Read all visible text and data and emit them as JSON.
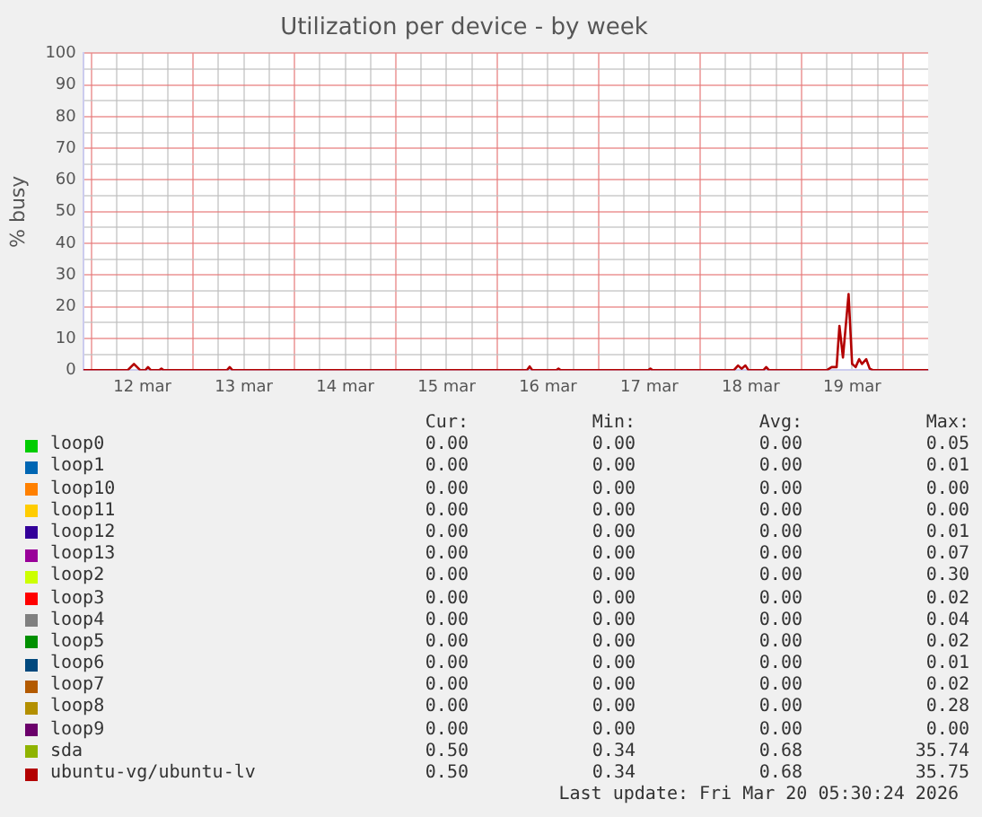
{
  "chart_data": {
    "type": "line",
    "title": "Utilization per device - by week",
    "ylabel": "% busy",
    "x": [
      "--03-11T22:00",
      "--03-12T08:30",
      "--03-12T10:00",
      "--03-12T11:30",
      "--03-12T12:40",
      "--03-12T13:20",
      "--03-12T14:00",
      "--03-12T16:00",
      "--03-12T16:30",
      "--03-12T17:00",
      "--03-13T08:00",
      "--03-13T08:40",
      "--03-13T09:20",
      "--03-16T07:00",
      "--03-16T07:40",
      "--03-16T08:20",
      "--03-16T14:00",
      "--03-16T14:30",
      "--03-16T15:00",
      "--03-17T11:45",
      "--03-17T12:15",
      "--03-17T12:45",
      "--03-18T08:00",
      "--03-18T09:00",
      "--03-18T09:50",
      "--03-18T10:45",
      "--03-18T11:30",
      "--03-18T15:00",
      "--03-18T15:40",
      "--03-18T16:20",
      "--03-19T06:00",
      "--03-19T07:10",
      "--03-19T08:20",
      "--03-19T09:00",
      "--03-19T09:50",
      "--03-19T11:10",
      "--03-19T12:00",
      "--03-19T12:50",
      "--03-19T13:40",
      "--03-19T14:20",
      "--03-19T15:20",
      "--03-19T16:10",
      "--03-19T17:00",
      "--03-20T06:00"
    ],
    "series": [
      {
        "name": "loop0",
        "color": "#00cc00",
        "values": [
          null,
          null,
          null,
          null,
          null,
          null,
          null,
          null,
          null,
          null,
          null,
          null,
          null,
          null,
          null,
          null,
          null,
          null,
          null,
          null,
          null,
          null,
          null,
          null,
          null,
          null,
          null,
          null,
          null,
          null,
          null,
          null,
          null,
          null,
          null,
          null,
          null,
          null,
          null,
          null,
          null,
          null,
          null,
          null
        ]
      },
      {
        "name": "loop1",
        "color": "#0066b3",
        "values": [
          null,
          null,
          null,
          null,
          null,
          null,
          null,
          null,
          null,
          null,
          null,
          null,
          null,
          null,
          null,
          null,
          null,
          null,
          null,
          null,
          null,
          null,
          null,
          null,
          null,
          null,
          null,
          null,
          null,
          null,
          null,
          null,
          null,
          null,
          null,
          null,
          null,
          null,
          null,
          null,
          null,
          null,
          null,
          null
        ]
      },
      {
        "name": "loop10",
        "color": "#ff8000",
        "values": [
          null,
          null,
          null,
          null,
          null,
          null,
          null,
          null,
          null,
          null,
          null,
          null,
          null,
          null,
          null,
          null,
          null,
          null,
          null,
          null,
          null,
          null,
          null,
          null,
          null,
          null,
          null,
          null,
          null,
          null,
          null,
          null,
          null,
          null,
          null,
          null,
          null,
          null,
          null,
          null,
          null,
          null,
          null,
          null
        ]
      },
      {
        "name": "loop11",
        "color": "#ffcc00",
        "values": [
          null,
          null,
          null,
          null,
          null,
          null,
          null,
          null,
          null,
          null,
          null,
          null,
          null,
          null,
          null,
          null,
          null,
          null,
          null,
          null,
          null,
          null,
          null,
          null,
          null,
          null,
          null,
          null,
          null,
          null,
          null,
          null,
          null,
          null,
          null,
          null,
          null,
          null,
          null,
          null,
          null,
          null,
          null,
          null
        ]
      },
      {
        "name": "loop12",
        "color": "#330099",
        "values": [
          null,
          null,
          null,
          null,
          null,
          null,
          null,
          null,
          null,
          null,
          null,
          null,
          null,
          null,
          null,
          null,
          null,
          null,
          null,
          null,
          null,
          null,
          null,
          null,
          null,
          null,
          null,
          null,
          null,
          null,
          null,
          null,
          null,
          null,
          null,
          null,
          null,
          null,
          null,
          null,
          null,
          null,
          null,
          null
        ]
      },
      {
        "name": "loop13",
        "color": "#990099",
        "values": [
          null,
          null,
          null,
          null,
          null,
          null,
          null,
          null,
          null,
          null,
          null,
          null,
          null,
          null,
          null,
          null,
          null,
          null,
          null,
          null,
          null,
          null,
          null,
          null,
          null,
          null,
          null,
          null,
          null,
          null,
          null,
          null,
          null,
          null,
          null,
          null,
          null,
          null,
          null,
          null,
          null,
          null,
          null,
          null
        ]
      },
      {
        "name": "loop2",
        "color": "#ccff00",
        "values": [
          null,
          null,
          null,
          null,
          null,
          null,
          null,
          null,
          null,
          null,
          null,
          null,
          null,
          null,
          null,
          null,
          null,
          null,
          null,
          null,
          null,
          null,
          null,
          null,
          null,
          null,
          null,
          null,
          null,
          null,
          null,
          null,
          null,
          null,
          null,
          null,
          null,
          null,
          null,
          null,
          null,
          null,
          null,
          null
        ]
      },
      {
        "name": "loop3",
        "color": "#ff0000",
        "values": [
          null,
          null,
          null,
          null,
          null,
          null,
          null,
          null,
          null,
          null,
          null,
          null,
          null,
          null,
          null,
          null,
          null,
          null,
          null,
          null,
          null,
          null,
          null,
          null,
          null,
          null,
          null,
          null,
          null,
          null,
          null,
          null,
          null,
          null,
          null,
          null,
          null,
          null,
          null,
          null,
          null,
          null,
          null,
          null
        ]
      },
      {
        "name": "loop4",
        "color": "#808080",
        "values": [
          null,
          null,
          null,
          null,
          null,
          null,
          null,
          null,
          null,
          null,
          null,
          null,
          null,
          null,
          null,
          null,
          null,
          null,
          null,
          null,
          null,
          null,
          null,
          null,
          null,
          null,
          null,
          null,
          null,
          null,
          null,
          null,
          null,
          null,
          null,
          null,
          null,
          null,
          null,
          null,
          null,
          null,
          null,
          null
        ]
      },
      {
        "name": "loop5",
        "color": "#008f00",
        "values": [
          null,
          null,
          null,
          null,
          null,
          null,
          null,
          null,
          null,
          null,
          null,
          null,
          null,
          null,
          null,
          null,
          null,
          null,
          null,
          null,
          null,
          null,
          null,
          null,
          null,
          null,
          null,
          null,
          null,
          null,
          null,
          null,
          null,
          null,
          null,
          null,
          null,
          null,
          null,
          null,
          null,
          null,
          null,
          null
        ]
      },
      {
        "name": "loop6",
        "color": "#00487d",
        "values": [
          null,
          null,
          null,
          null,
          null,
          null,
          null,
          null,
          null,
          null,
          null,
          null,
          null,
          null,
          null,
          null,
          null,
          null,
          null,
          null,
          null,
          null,
          null,
          null,
          null,
          null,
          null,
          null,
          null,
          null,
          null,
          null,
          null,
          null,
          null,
          null,
          null,
          null,
          null,
          null,
          null,
          null,
          null,
          null
        ]
      },
      {
        "name": "loop7",
        "color": "#b35a00",
        "values": [
          null,
          null,
          null,
          null,
          null,
          null,
          null,
          null,
          null,
          null,
          null,
          null,
          null,
          null,
          null,
          null,
          null,
          null,
          null,
          null,
          null,
          null,
          null,
          null,
          null,
          null,
          null,
          null,
          null,
          null,
          null,
          null,
          null,
          null,
          null,
          null,
          null,
          null,
          null,
          null,
          null,
          null,
          null,
          null
        ]
      },
      {
        "name": "loop8",
        "color": "#b38f00",
        "values": [
          null,
          null,
          null,
          null,
          null,
          null,
          null,
          null,
          null,
          null,
          null,
          null,
          null,
          null,
          null,
          null,
          null,
          null,
          null,
          null,
          null,
          null,
          null,
          null,
          null,
          null,
          null,
          null,
          null,
          null,
          null,
          null,
          null,
          null,
          null,
          null,
          null,
          null,
          null,
          null,
          null,
          null,
          null,
          null
        ]
      },
      {
        "name": "loop9",
        "color": "#6b006b",
        "values": [
          null,
          null,
          null,
          null,
          null,
          null,
          null,
          null,
          null,
          null,
          null,
          null,
          null,
          null,
          null,
          null,
          null,
          null,
          null,
          null,
          null,
          null,
          null,
          null,
          null,
          null,
          null,
          null,
          null,
          null,
          null,
          null,
          null,
          null,
          null,
          null,
          null,
          null,
          null,
          null,
          null,
          null,
          null,
          null
        ]
      },
      {
        "name": "sda",
        "color": "#8fb300",
        "values": [
          null,
          null,
          null,
          null,
          null,
          null,
          null,
          null,
          null,
          null,
          null,
          null,
          null,
          null,
          null,
          null,
          null,
          null,
          null,
          null,
          null,
          null,
          null,
          null,
          null,
          null,
          null,
          null,
          null,
          null,
          null,
          null,
          null,
          null,
          null,
          null,
          null,
          null,
          null,
          null,
          null,
          null,
          null,
          null
        ]
      },
      {
        "name": "ubuntu-vg/ubuntu-lv",
        "color": "#b30000",
        "values": [
          0,
          0,
          2,
          0,
          0,
          1,
          0,
          0,
          0.5,
          0,
          0,
          1,
          0,
          0,
          1.2,
          0,
          0,
          0.5,
          0,
          0,
          0.5,
          0,
          0,
          1.5,
          0.5,
          1.5,
          0,
          0,
          1,
          0,
          0,
          1,
          1,
          14,
          4,
          24,
          2,
          1,
          3.5,
          2,
          3.5,
          0.5,
          0,
          0
        ]
      }
    ],
    "xlim": [
      "--03-11T22:00",
      "--03-20T06:00"
    ],
    "xticks": [
      {
        "value": "--03-12T00:00",
        "label": null
      },
      {
        "value": "--03-12T06:00",
        "label": null
      },
      {
        "value": "--03-12T12:00",
        "label": "12 mar"
      },
      {
        "value": "--03-12T18:00",
        "label": null
      },
      {
        "value": "--03-13T00:00",
        "label": null
      },
      {
        "value": "--03-13T06:00",
        "label": null
      },
      {
        "value": "--03-13T12:00",
        "label": "13 mar"
      },
      {
        "value": "--03-13T18:00",
        "label": null
      },
      {
        "value": "--03-14T00:00",
        "label": null
      },
      {
        "value": "--03-14T06:00",
        "label": null
      },
      {
        "value": "--03-14T12:00",
        "label": "14 mar"
      },
      {
        "value": "--03-14T18:00",
        "label": null
      },
      {
        "value": "--03-15T00:00",
        "label": null
      },
      {
        "value": "--03-15T06:00",
        "label": null
      },
      {
        "value": "--03-15T12:00",
        "label": "15 mar"
      },
      {
        "value": "--03-15T18:00",
        "label": null
      },
      {
        "value": "--03-16T00:00",
        "label": null
      },
      {
        "value": "--03-16T06:00",
        "label": null
      },
      {
        "value": "--03-16T12:00",
        "label": "16 mar"
      },
      {
        "value": "--03-16T18:00",
        "label": null
      },
      {
        "value": "--03-17T00:00",
        "label": null
      },
      {
        "value": "--03-17T06:00",
        "label": null
      },
      {
        "value": "--03-17T12:00",
        "label": "17 mar"
      },
      {
        "value": "--03-17T18:00",
        "label": null
      },
      {
        "value": "--03-18T00:00",
        "label": null
      },
      {
        "value": "--03-18T06:00",
        "label": null
      },
      {
        "value": "--03-18T12:00",
        "label": "18 mar"
      },
      {
        "value": "--03-18T18:00",
        "label": null
      },
      {
        "value": "--03-19T00:00",
        "label": null
      },
      {
        "value": "--03-19T06:00",
        "label": null
      },
      {
        "value": "--03-19T12:00",
        "label": "19 mar"
      },
      {
        "value": "--03-19T18:00",
        "label": null
      },
      {
        "value": "--03-20T00:00",
        "label": null
      }
    ],
    "ylim": [
      0,
      100
    ],
    "yticks": [
      0,
      {
        "value": 5,
        "label": null
      },
      10,
      {
        "value": 15,
        "label": null
      },
      20,
      {
        "value": 25,
        "label": null
      },
      30,
      {
        "value": 35,
        "label": null
      },
      40,
      {
        "value": 45,
        "label": null
      },
      50,
      {
        "value": 55,
        "label": null
      },
      60,
      {
        "value": 65,
        "label": null
      },
      70,
      {
        "value": 75,
        "label": null
      },
      80,
      {
        "value": 85,
        "label": null
      },
      90,
      {
        "value": 95,
        "label": null
      },
      100
    ],
    "grid": true,
    "legend": "bottom",
    "marker": "none",
    "line_style": "solid",
    "annotations": [
      "Cur:",
      "Min:",
      "Avg:",
      "Max:",
      "0.00",
      "0.00",
      "0.00",
      "0.05",
      "0.00",
      "0.00",
      "0.00",
      "0.01",
      "0.00",
      "0.00",
      "0.00",
      "0.00",
      "0.00",
      "0.00",
      "0.00",
      "0.00",
      "0.00",
      "0.00",
      "0.00",
      "0.01",
      "0.00",
      "0.00",
      "0.00",
      "0.07",
      "0.00",
      "0.00",
      "0.00",
      "0.30",
      "0.00",
      "0.00",
      "0.00",
      "0.02",
      "0.00",
      "0.00",
      "0.00",
      "0.04",
      "0.00",
      "0.00",
      "0.00",
      "0.02",
      "0.00",
      "0.00",
      "0.00",
      "0.01",
      "0.00",
      "0.00",
      "0.00",
      "0.02",
      "0.00",
      "0.00",
      "0.00",
      "0.28",
      "0.00",
      "0.00",
      "0.00",
      "0.00",
      "0.50",
      "0.34",
      "0.68",
      "35.74",
      "0.50",
      "0.34",
      "0.68",
      "35.75",
      "Last update: Fri Mar 20 05:30:24 2026"
    ]
  }
}
